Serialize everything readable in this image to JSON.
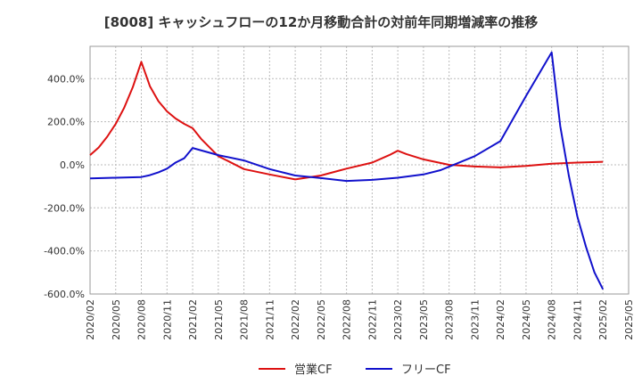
{
  "chart_data": {
    "type": "line",
    "title": "[8008]  キャッシュフローの12か月移動合計の対前年同期増減率の推移",
    "xlabel": "",
    "ylabel": "",
    "ylim": [
      -600,
      550
    ],
    "yticks": [
      "400.0%",
      "200.0%",
      "0.0%",
      "-200.0%",
      "-400.0%",
      "-600.0%"
    ],
    "ytick_values": [
      400,
      200,
      0,
      -200,
      -400,
      -600
    ],
    "xticks": [
      "2020/02",
      "2020/05",
      "2020/08",
      "2020/11",
      "2021/02",
      "2021/05",
      "2021/08",
      "2021/11",
      "2022/02",
      "2022/05",
      "2022/08",
      "2022/11",
      "2023/02",
      "2023/05",
      "2023/08",
      "2023/11",
      "2024/02",
      "2024/05",
      "2024/08",
      "2024/11",
      "2025/02",
      "2025/05"
    ],
    "x_start": "2020/02",
    "grid": true,
    "legend_position": "bottom",
    "series": [
      {
        "name": "営業CF",
        "color": "#dd1111",
        "points": [
          [
            "2020/02",
            45
          ],
          [
            "2020/03",
            80
          ],
          [
            "2020/04",
            130
          ],
          [
            "2020/05",
            190
          ],
          [
            "2020/06",
            265
          ],
          [
            "2020/07",
            360
          ],
          [
            "2020/08",
            478
          ],
          [
            "2020/09",
            365
          ],
          [
            "2020/10",
            295
          ],
          [
            "2020/11",
            248
          ],
          [
            "2020/12",
            215
          ],
          [
            "2021/01",
            190
          ],
          [
            "2021/02",
            170
          ],
          [
            "2021/03",
            120
          ],
          [
            "2021/05",
            40
          ],
          [
            "2021/08",
            -20
          ],
          [
            "2021/11",
            -45
          ],
          [
            "2022/02",
            -68
          ],
          [
            "2022/05",
            -50
          ],
          [
            "2022/08",
            -18
          ],
          [
            "2022/11",
            10
          ],
          [
            "2023/01",
            45
          ],
          [
            "2023/02",
            65
          ],
          [
            "2023/03",
            50
          ],
          [
            "2023/05",
            25
          ],
          [
            "2023/08",
            0
          ],
          [
            "2023/11",
            -8
          ],
          [
            "2024/02",
            -12
          ],
          [
            "2024/05",
            -5
          ],
          [
            "2024/08",
            5
          ],
          [
            "2024/11",
            10
          ],
          [
            "2025/02",
            14
          ]
        ]
      },
      {
        "name": "フリーCF",
        "color": "#1111cc",
        "points": [
          [
            "2020/02",
            -63
          ],
          [
            "2020/05",
            -60
          ],
          [
            "2020/08",
            -57
          ],
          [
            "2020/09",
            -48
          ],
          [
            "2020/10",
            -35
          ],
          [
            "2020/11",
            -18
          ],
          [
            "2020/12",
            10
          ],
          [
            "2021/01",
            30
          ],
          [
            "2021/02",
            78
          ],
          [
            "2021/05",
            45
          ],
          [
            "2021/08",
            20
          ],
          [
            "2021/11",
            -20
          ],
          [
            "2022/02",
            -50
          ],
          [
            "2022/05",
            -62
          ],
          [
            "2022/08",
            -75
          ],
          [
            "2022/11",
            -70
          ],
          [
            "2023/02",
            -60
          ],
          [
            "2023/05",
            -45
          ],
          [
            "2023/07",
            -25
          ],
          [
            "2023/11",
            40
          ],
          [
            "2024/02",
            110
          ],
          [
            "2024/05",
            320
          ],
          [
            "2024/08",
            522
          ],
          [
            "2024/09",
            180
          ],
          [
            "2024/10",
            -50
          ],
          [
            "2024/11",
            -240
          ],
          [
            "2024/12",
            -380
          ],
          [
            "2025/01",
            -500
          ],
          [
            "2025/02",
            -578
          ]
        ]
      }
    ]
  }
}
